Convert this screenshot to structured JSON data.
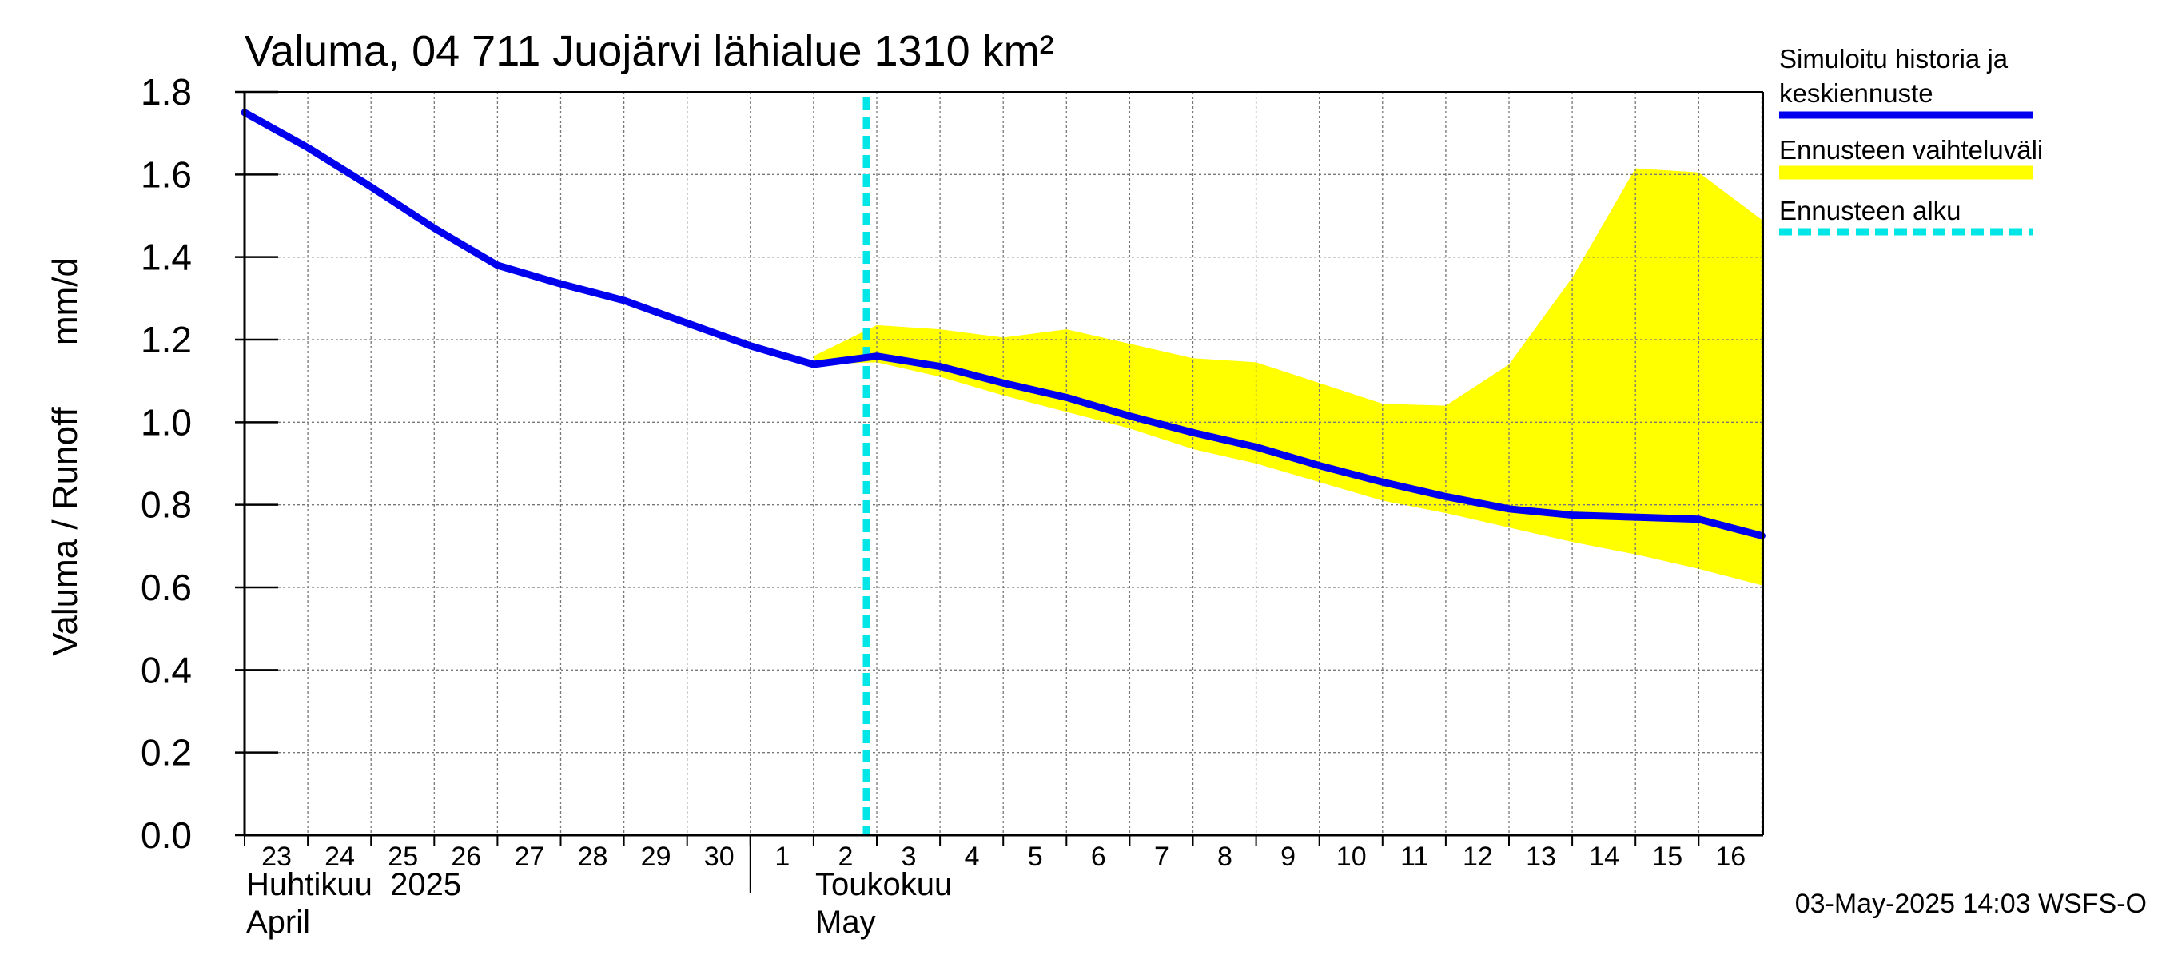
{
  "chart_data": {
    "type": "area",
    "title": "Valuma, 04 711 Juojärvi lähialue 1310 km²",
    "ylabel_left": "Valuma / Runoff",
    "ylabel_right": "mm/d",
    "ylim": [
      0,
      1.8
    ],
    "yticks": [
      "0.0",
      "0.2",
      "0.4",
      "0.6",
      "0.8",
      "1.0",
      "1.2",
      "1.4",
      "1.6",
      "1.8"
    ],
    "x_day_labels": [
      "23",
      "24",
      "25",
      "26",
      "27",
      "28",
      "29",
      "30",
      "1",
      "2",
      "3",
      "4",
      "5",
      "6",
      "7",
      "8",
      "9",
      "10",
      "11",
      "12",
      "13",
      "14",
      "15",
      "16"
    ],
    "month_labels": {
      "april_fi": "Huhtikuu  2025",
      "april_en": "April",
      "may_fi": "Toukokuu",
      "may_en": "May"
    },
    "forecast_start": "2025-05-03",
    "series": [
      {
        "name": "Simuloitu historia ja keskiennuste",
        "color": "#0000ee",
        "x": [
          "2025-04-23",
          "2025-04-24",
          "2025-04-25",
          "2025-04-26",
          "2025-04-27",
          "2025-04-28",
          "2025-04-29",
          "2025-04-30",
          "2025-05-01",
          "2025-05-02",
          "2025-05-03",
          "2025-05-04",
          "2025-05-05",
          "2025-05-06",
          "2025-05-07",
          "2025-05-08",
          "2025-05-09",
          "2025-05-10",
          "2025-05-11",
          "2025-05-12",
          "2025-05-13",
          "2025-05-14",
          "2025-05-15",
          "2025-05-16",
          "2025-05-17"
        ],
        "values": [
          1.75,
          1.665,
          1.57,
          1.47,
          1.38,
          1.335,
          1.295,
          1.24,
          1.185,
          1.14,
          1.16,
          1.135,
          1.095,
          1.06,
          1.015,
          0.975,
          0.94,
          0.895,
          0.855,
          0.82,
          0.79,
          0.775,
          0.77,
          0.765,
          0.725
        ]
      },
      {
        "name": "Ennusteen vaihteluväli",
        "color": "#ffff00",
        "x": [
          "2025-05-02",
          "2025-05-03",
          "2025-05-04",
          "2025-05-05",
          "2025-05-06",
          "2025-05-07",
          "2025-05-08",
          "2025-05-09",
          "2025-05-10",
          "2025-05-11",
          "2025-05-12",
          "2025-05-13",
          "2025-05-14",
          "2025-05-15",
          "2025-05-16",
          "2025-05-17"
        ],
        "upper": [
          1.16,
          1.235,
          1.225,
          1.205,
          1.225,
          1.19,
          1.155,
          1.145,
          1.095,
          1.045,
          1.04,
          1.14,
          1.35,
          1.615,
          1.605,
          1.49
        ],
        "lower": [
          1.14,
          1.145,
          1.11,
          1.065,
          1.025,
          0.985,
          0.935,
          0.9,
          0.855,
          0.81,
          0.78,
          0.745,
          0.71,
          0.68,
          0.645,
          0.605
        ]
      }
    ],
    "legend": {
      "position": "right",
      "items": [
        {
          "label_lines": [
            "Simuloitu historia ja",
            "keskiennuste"
          ],
          "color": "#0000ee",
          "style": "solid"
        },
        {
          "label_lines": [
            "Ennusteen vaihteluväli"
          ],
          "color": "#ffff00",
          "style": "band"
        },
        {
          "label_lines": [
            "Ennusteen alku"
          ],
          "color": "#00e5e5",
          "style": "dashed"
        }
      ]
    },
    "grid": true
  },
  "footer": {
    "timestamp": "03-May-2025 14:03 WSFS-O"
  }
}
